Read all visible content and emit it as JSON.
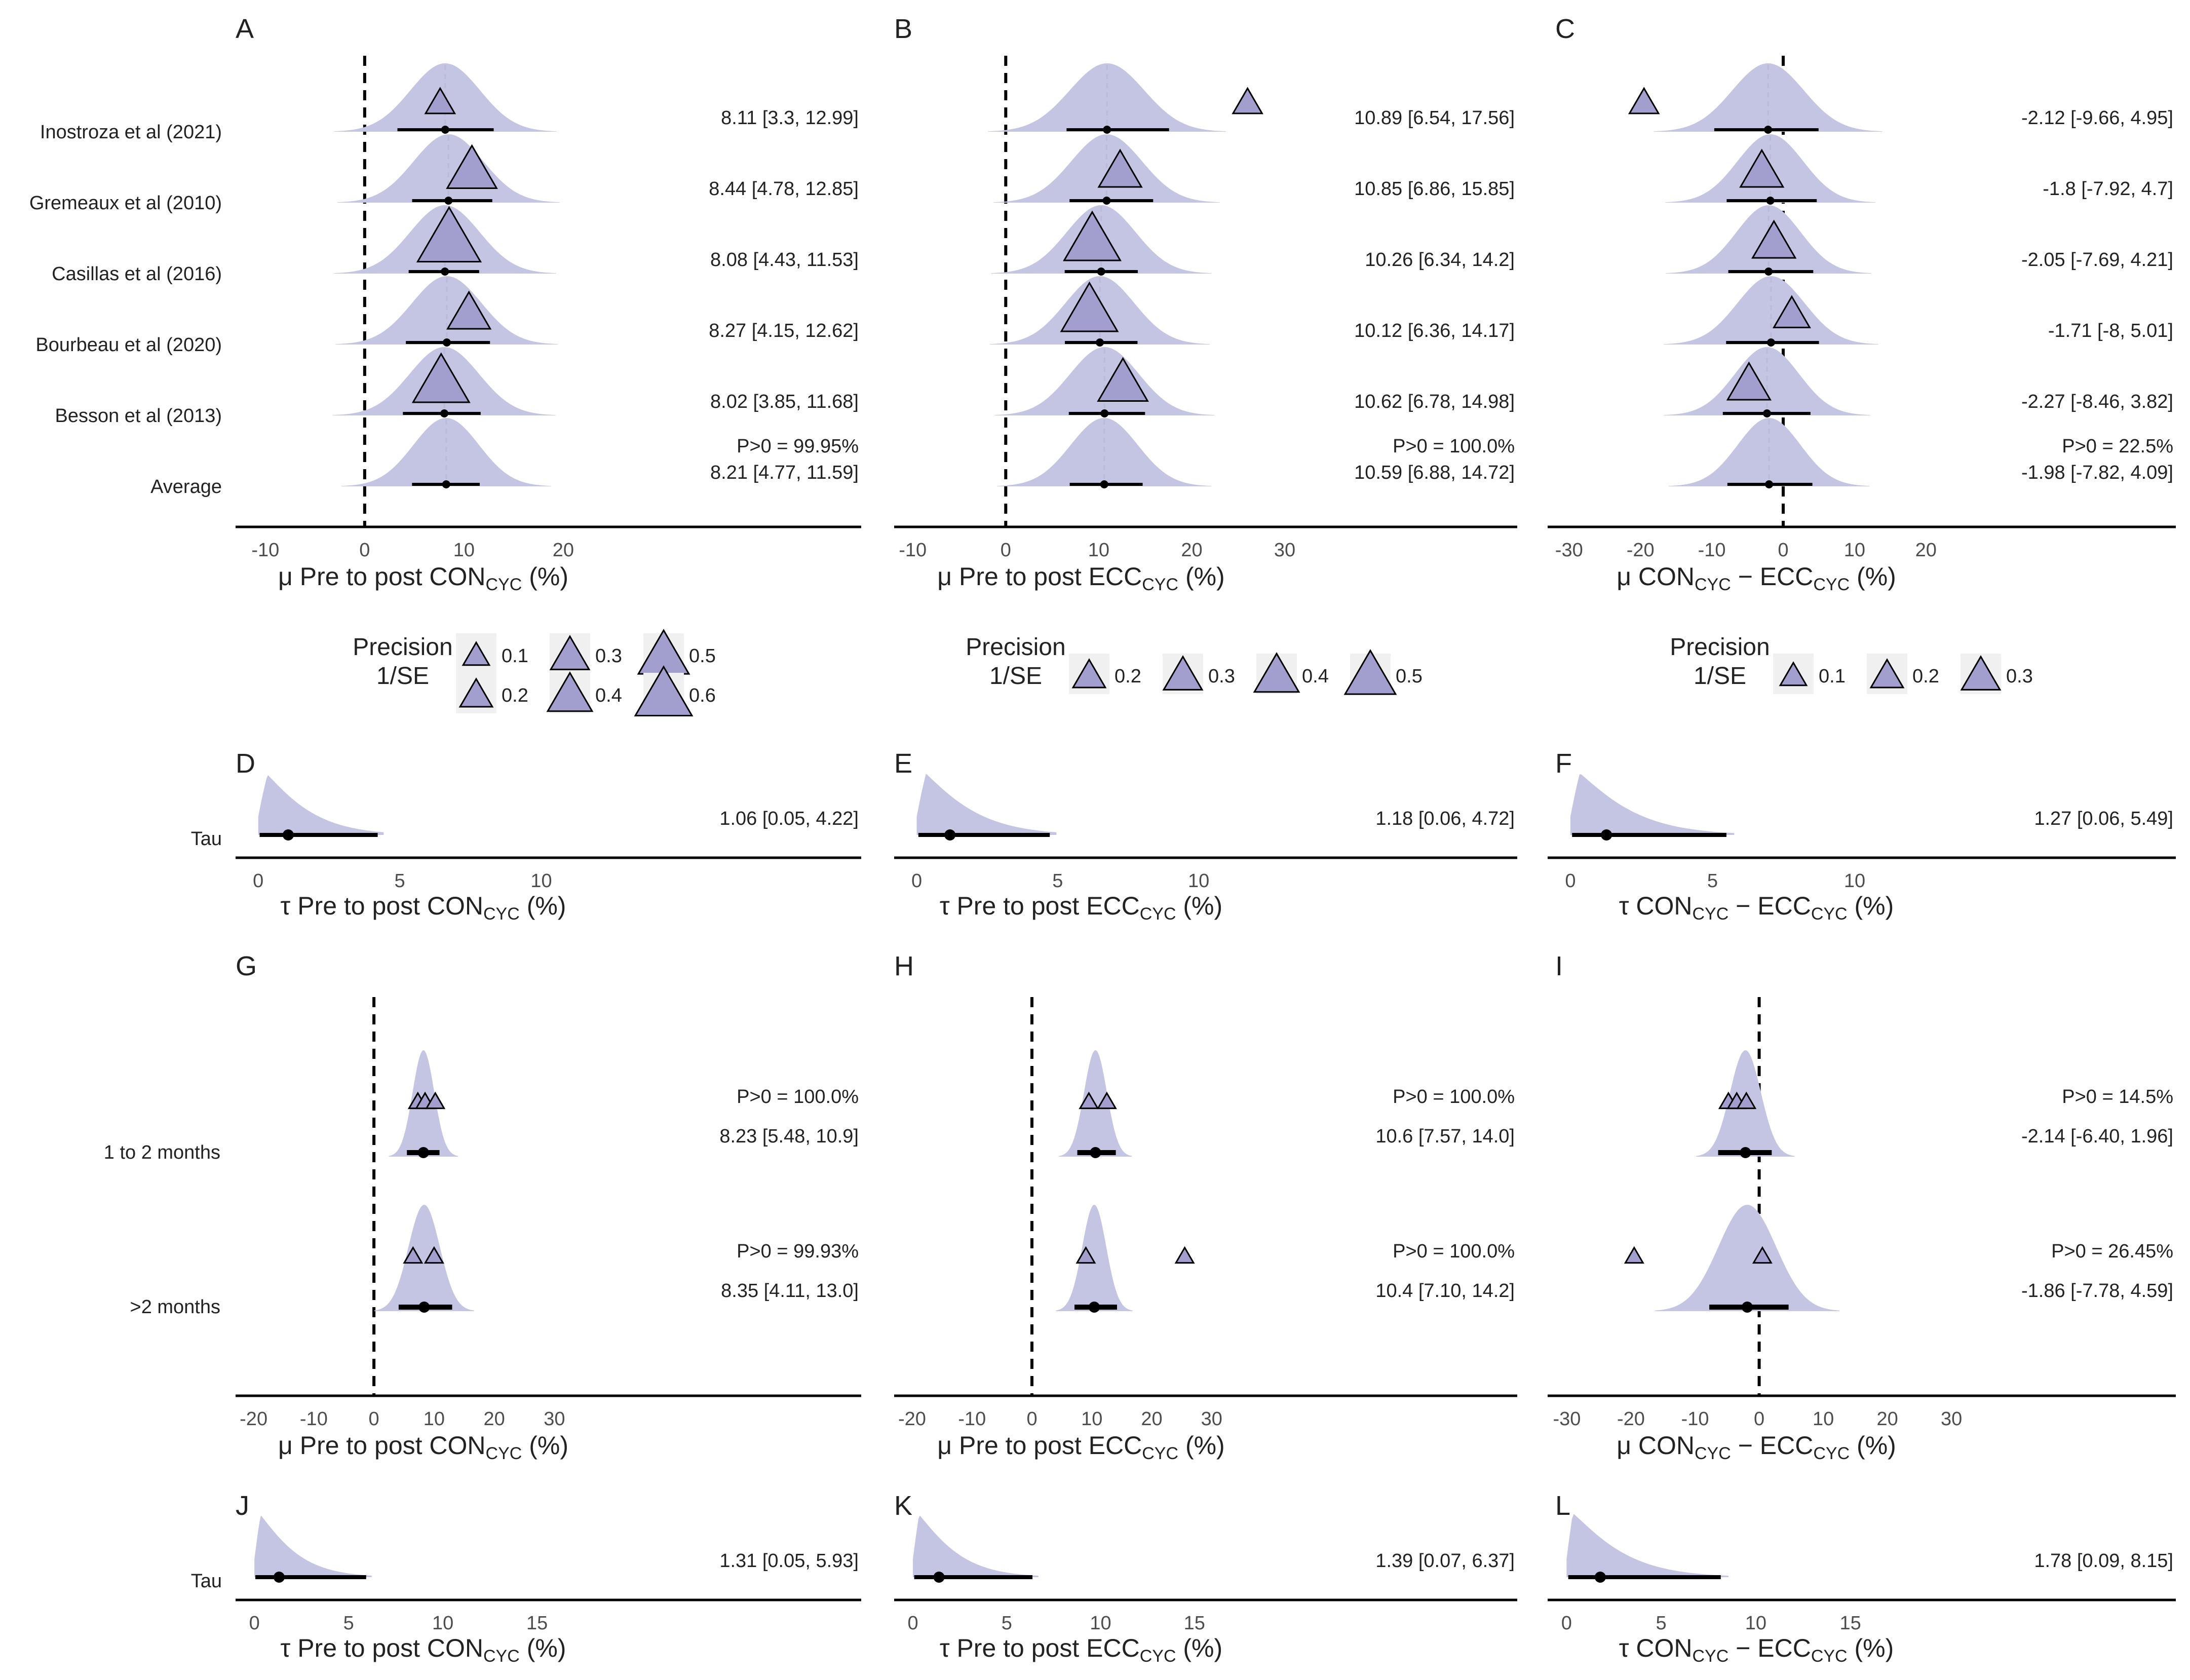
{
  "colors": {
    "fill": "#c3c5e3",
    "tri": "#a29fcf",
    "stroke": "#000000",
    "text": "#222222",
    "tick": "#4d4d4d"
  },
  "precision_title": [
    "Precision",
    "1/SE"
  ],
  "chart_data": [
    {
      "panel": "A",
      "type": "forest",
      "xaxis": {
        "ticks": [
          -10,
          0,
          10,
          20
        ],
        "min": -13,
        "max": 50,
        "label": [
          "μ Pre to post CON",
          "CYC",
          " (%)"
        ]
      },
      "rows": [
        {
          "label": "Inostroza et al (2021)",
          "estimate": 8.11,
          "ci": [
            3.3,
            12.99
          ],
          "text": "8.11 [3.3, 12.99]",
          "obs": 7.6,
          "obs_precision": 0.1,
          "width": 3.5
        },
        {
          "label": "Gremeaux et al (2010)",
          "estimate": 8.44,
          "ci": [
            4.78,
            12.85
          ],
          "text": "8.44 [4.78, 12.85]",
          "obs": 10.8,
          "obs_precision": 0.4,
          "width": 3.5
        },
        {
          "label": "Casillas et al (2016)",
          "estimate": 8.08,
          "ci": [
            4.43,
            11.53
          ],
          "text": "8.08 [4.43, 11.53]",
          "obs": 8.5,
          "obs_precision": 0.6,
          "width": 3.5
        },
        {
          "label": "Bourbeau et al (2020)",
          "estimate": 8.27,
          "ci": [
            4.15,
            12.62
          ],
          "text": "8.27 [4.15, 12.62]",
          "obs": 10.5,
          "obs_precision": 0.3,
          "width": 3.5
        },
        {
          "label": "Besson et al (2013)",
          "estimate": 8.02,
          "ci": [
            3.85,
            11.68
          ],
          "text": "8.02 [3.85, 11.68]",
          "obs": 7.7,
          "obs_precision": 0.5,
          "width": 3.5
        },
        {
          "label": "Average",
          "estimate": 8.21,
          "ci": [
            4.77,
            11.59
          ],
          "text": "8.21 [4.77, 11.59]",
          "prob": "P>0 = 99.95%",
          "width": 3.3
        }
      ],
      "legend": [
        0.1,
        0.2,
        0.3,
        0.4,
        0.5,
        0.6
      ]
    },
    {
      "panel": "B",
      "type": "forest",
      "xaxis": {
        "ticks": [
          -10,
          0,
          10,
          20,
          30
        ],
        "min": -12,
        "max": 55,
        "label": [
          "μ Pre to post ECC",
          "CYC",
          " (%)"
        ]
      },
      "rows": [
        {
          "label": "",
          "estimate": 10.89,
          "ci": [
            6.54,
            17.56
          ],
          "text": "10.89 [6.54, 17.56]",
          "obs": 26.0,
          "obs_precision": 0.1,
          "width": 4.0
        },
        {
          "label": "",
          "estimate": 10.85,
          "ci": [
            6.86,
            15.85
          ],
          "text": "10.85 [6.86, 15.85]",
          "obs": 12.3,
          "obs_precision": 0.3,
          "width": 3.8
        },
        {
          "label": "",
          "estimate": 10.26,
          "ci": [
            6.34,
            14.2
          ],
          "text": "10.26 [6.34, 14.2]",
          "obs": 9.3,
          "obs_precision": 0.5,
          "width": 3.7
        },
        {
          "label": "",
          "estimate": 10.12,
          "ci": [
            6.36,
            14.17
          ],
          "text": "10.12 [6.36, 14.17]",
          "obs": 9.0,
          "obs_precision": 0.5,
          "width": 3.7
        },
        {
          "label": "",
          "estimate": 10.62,
          "ci": [
            6.78,
            14.98
          ],
          "text": "10.62 [6.78, 14.98]",
          "obs": 12.6,
          "obs_precision": 0.4,
          "width": 3.7
        },
        {
          "label": "",
          "estimate": 10.59,
          "ci": [
            6.88,
            14.72
          ],
          "text": "10.59 [6.88, 14.72]",
          "prob": "P>0 = 100.0%",
          "width": 3.6
        }
      ],
      "legend": [
        0.2,
        0.3,
        0.4,
        0.5
      ]
    },
    {
      "panel": "C",
      "type": "forest",
      "xaxis": {
        "ticks": [
          -30,
          -20,
          -10,
          0,
          10,
          20
        ],
        "min": -33,
        "max": 55,
        "label": [
          "μ CON",
          "CYC",
          " − ECC",
          "CYC",
          " (%)"
        ]
      },
      "rows": [
        {
          "label": "",
          "estimate": -2.12,
          "ci": [
            -9.66,
            4.95
          ],
          "text": "-2.12 [-9.66, 4.95]",
          "obs": -19.5,
          "obs_precision": 0.1,
          "width": 5.0
        },
        {
          "label": "",
          "estimate": -1.8,
          "ci": [
            -7.92,
            4.7
          ],
          "text": "-1.8 [-7.92, 4.7]",
          "obs": -3.0,
          "obs_precision": 0.3,
          "width": 4.6
        },
        {
          "label": "",
          "estimate": -2.05,
          "ci": [
            -7.69,
            4.21
          ],
          "text": "-2.05 [-7.69, 4.21]",
          "obs": -1.3,
          "obs_precision": 0.3,
          "width": 4.5
        },
        {
          "label": "",
          "estimate": -1.71,
          "ci": [
            -8,
            5.01
          ],
          "text": "-1.71 [-8, 5.01]",
          "obs": 1.2,
          "obs_precision": 0.2,
          "width": 4.7
        },
        {
          "label": "",
          "estimate": -2.27,
          "ci": [
            -8.46,
            3.82
          ],
          "text": "-2.27 [-8.46, 3.82]",
          "obs": -4.8,
          "obs_precision": 0.3,
          "width": 4.5
        },
        {
          "label": "",
          "estimate": -1.98,
          "ci": [
            -7.82,
            4.09
          ],
          "text": "-1.98 [-7.82, 4.09]",
          "prob": "P>0 = 22.5%",
          "width": 4.4
        }
      ],
      "legend": [
        0.1,
        0.2,
        0.3
      ]
    },
    {
      "panel": "D",
      "type": "tau",
      "label": "Tau",
      "median": 1.06,
      "ci": [
        0.05,
        4.22
      ],
      "text": "1.06 [0.05, 4.22]",
      "xaxis": {
        "ticks": [
          0,
          5,
          10
        ],
        "min": -0.8,
        "max": 21.3,
        "label": [
          "τ Pre to post CON",
          "CYC",
          " (%)"
        ]
      }
    },
    {
      "panel": "E",
      "type": "tau",
      "label": "",
      "median": 1.18,
      "ci": [
        0.06,
        4.72
      ],
      "text": "1.18 [0.06, 4.72]",
      "xaxis": {
        "ticks": [
          0,
          5,
          10
        ],
        "min": -0.8,
        "max": 21.3,
        "label": [
          "τ Pre to post ECC",
          "CYC",
          " (%)"
        ]
      }
    },
    {
      "panel": "F",
      "type": "tau",
      "label": "",
      "median": 1.27,
      "ci": [
        0.06,
        5.49
      ],
      "text": "1.27 [0.06, 5.49]",
      "xaxis": {
        "ticks": [
          0,
          5,
          10
        ],
        "min": -0.8,
        "max": 21.3,
        "label": [
          "τ CON",
          "CYC",
          " − ECC",
          "CYC",
          " (%)"
        ]
      }
    },
    {
      "panel": "G",
      "type": "moderator",
      "xaxis": {
        "ticks": [
          -20,
          -10,
          0,
          10,
          20,
          30
        ],
        "min": -23,
        "max": 81,
        "label": [
          "μ Pre to post CON",
          "CYC",
          " (%)"
        ]
      },
      "rows": [
        {
          "label": "1 to 2 months",
          "estimate": 8.23,
          "ci": [
            5.48,
            10.9
          ],
          "text": "8.23 [5.48, 10.9]",
          "prob": "P>0 = 100.0%",
          "obs": [
            7.3,
            8.5,
            10.2
          ],
          "width": 1.8
        },
        {
          "label": ">2 months",
          "estimate": 8.35,
          "ci": [
            4.11,
            13.0
          ],
          "text": "8.35 [4.11, 13.0]",
          "prob": "P>0 = 99.93%",
          "obs": [
            6.5,
            10.0
          ],
          "width": 2.6
        }
      ]
    },
    {
      "panel": "H",
      "type": "moderator",
      "xaxis": {
        "ticks": [
          -20,
          -10,
          0,
          10,
          20,
          30
        ],
        "min": -23,
        "max": 81,
        "label": [
          "μ Pre to post ECC",
          "CYC",
          " (%)"
        ]
      },
      "rows": [
        {
          "label": "",
          "estimate": 10.6,
          "ci": [
            7.57,
            14.0
          ],
          "text": "10.6 [7.57, 14.0]",
          "prob": "P>0 = 100.0%",
          "obs": [
            9.5,
            12.5
          ],
          "width": 1.9
        },
        {
          "label": "",
          "estimate": 10.4,
          "ci": [
            7.1,
            14.2
          ],
          "text": "10.4 [7.10, 14.2]",
          "prob": "P>0 = 100.0%",
          "obs": [
            9.0,
            25.5
          ],
          "width": 2.0
        }
      ]
    },
    {
      "panel": "I",
      "type": "moderator",
      "xaxis": {
        "ticks": [
          -30,
          -20,
          -10,
          0,
          10,
          20,
          30
        ],
        "min": -33,
        "max": 65,
        "label": [
          "μ CON",
          "CYC",
          " − ECC",
          "CYC",
          " (%)"
        ]
      },
      "rows": [
        {
          "label": "",
          "estimate": -2.14,
          "ci": [
            -6.4,
            1.96
          ],
          "text": "-2.14 [-6.40, 1.96]",
          "prob": "P>0 = 14.5%",
          "obs": [
            -4.8,
            -3.5,
            -2.0
          ],
          "width": 2.4
        },
        {
          "label": "",
          "estimate": -1.86,
          "ci": [
            -7.78,
            4.59
          ],
          "text": "-1.86 [-7.78, 4.59]",
          "prob": "P>0 = 26.45%",
          "obs": [
            -19.5,
            0.5
          ],
          "width": 4.5
        }
      ]
    },
    {
      "panel": "J",
      "type": "tau",
      "label": "Tau",
      "median": 1.31,
      "ci": [
        0.05,
        5.93
      ],
      "text": "1.31 [0.05, 5.93]",
      "xaxis": {
        "ticks": [
          0,
          5,
          10,
          15
        ],
        "min": -1,
        "max": 32.2,
        "label": [
          "τ Pre to post CON",
          "CYC",
          " (%)"
        ]
      }
    },
    {
      "panel": "K",
      "type": "tau",
      "label": "",
      "median": 1.39,
      "ci": [
        0.07,
        6.37
      ],
      "text": "1.39 [0.07, 6.37]",
      "xaxis": {
        "ticks": [
          0,
          5,
          10,
          15
        ],
        "min": -1,
        "max": 32.2,
        "label": [
          "τ Pre to post ECC",
          "CYC",
          " (%)"
        ]
      }
    },
    {
      "panel": "L",
      "type": "tau",
      "label": "",
      "median": 1.78,
      "ci": [
        0.09,
        8.15
      ],
      "text": "1.78 [0.09, 8.15]",
      "xaxis": {
        "ticks": [
          0,
          5,
          10,
          15
        ],
        "min": -1,
        "max": 32.2,
        "label": [
          "τ CON",
          "CYC",
          " − ECC",
          "CYC",
          " (%)"
        ]
      }
    }
  ]
}
